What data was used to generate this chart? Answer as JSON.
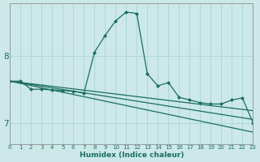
{
  "xlabel": "Humidex (Indice chaleur)",
  "background_color": "#cce8e8",
  "grid_color": "#aad4d4",
  "line_color": "#1a6e60",
  "xlim": [
    0,
    23
  ],
  "ylim": [
    6.68,
    8.78
  ],
  "yticks": [
    7,
    8
  ],
  "xtick_labels": [
    "0",
    "1",
    "2",
    "3",
    "4",
    "5",
    "6",
    "7",
    "8",
    "9",
    "10",
    "11",
    "12",
    "13",
    "14",
    "15",
    "16",
    "17",
    "18",
    "19",
    "20",
    "21",
    "22",
    "23"
  ],
  "series": [
    {
      "x": [
        0,
        1,
        2,
        3,
        4,
        5,
        6,
        7,
        8,
        9,
        10,
        11,
        12,
        13,
        14,
        15,
        16,
        17,
        18,
        19,
        20,
        21,
        22,
        23
      ],
      "y": [
        7.62,
        7.62,
        7.5,
        7.5,
        7.49,
        7.48,
        7.47,
        7.44,
        8.05,
        8.3,
        8.52,
        8.65,
        8.63,
        7.73,
        7.55,
        7.6,
        7.38,
        7.34,
        7.3,
        7.28,
        7.28,
        7.34,
        7.37,
        7.0
      ],
      "marker": "D",
      "markersize": 2.0,
      "lw": 0.9
    },
    {
      "x": [
        0,
        23
      ],
      "y": [
        7.62,
        6.86
      ],
      "marker": null,
      "markersize": 0,
      "lw": 0.9
    },
    {
      "x": [
        0,
        23
      ],
      "y": [
        7.62,
        7.18
      ],
      "marker": null,
      "markersize": 0,
      "lw": 0.9
    },
    {
      "x": [
        0,
        23
      ],
      "y": [
        7.62,
        7.05
      ],
      "marker": null,
      "markersize": 0,
      "lw": 0.9
    }
  ]
}
